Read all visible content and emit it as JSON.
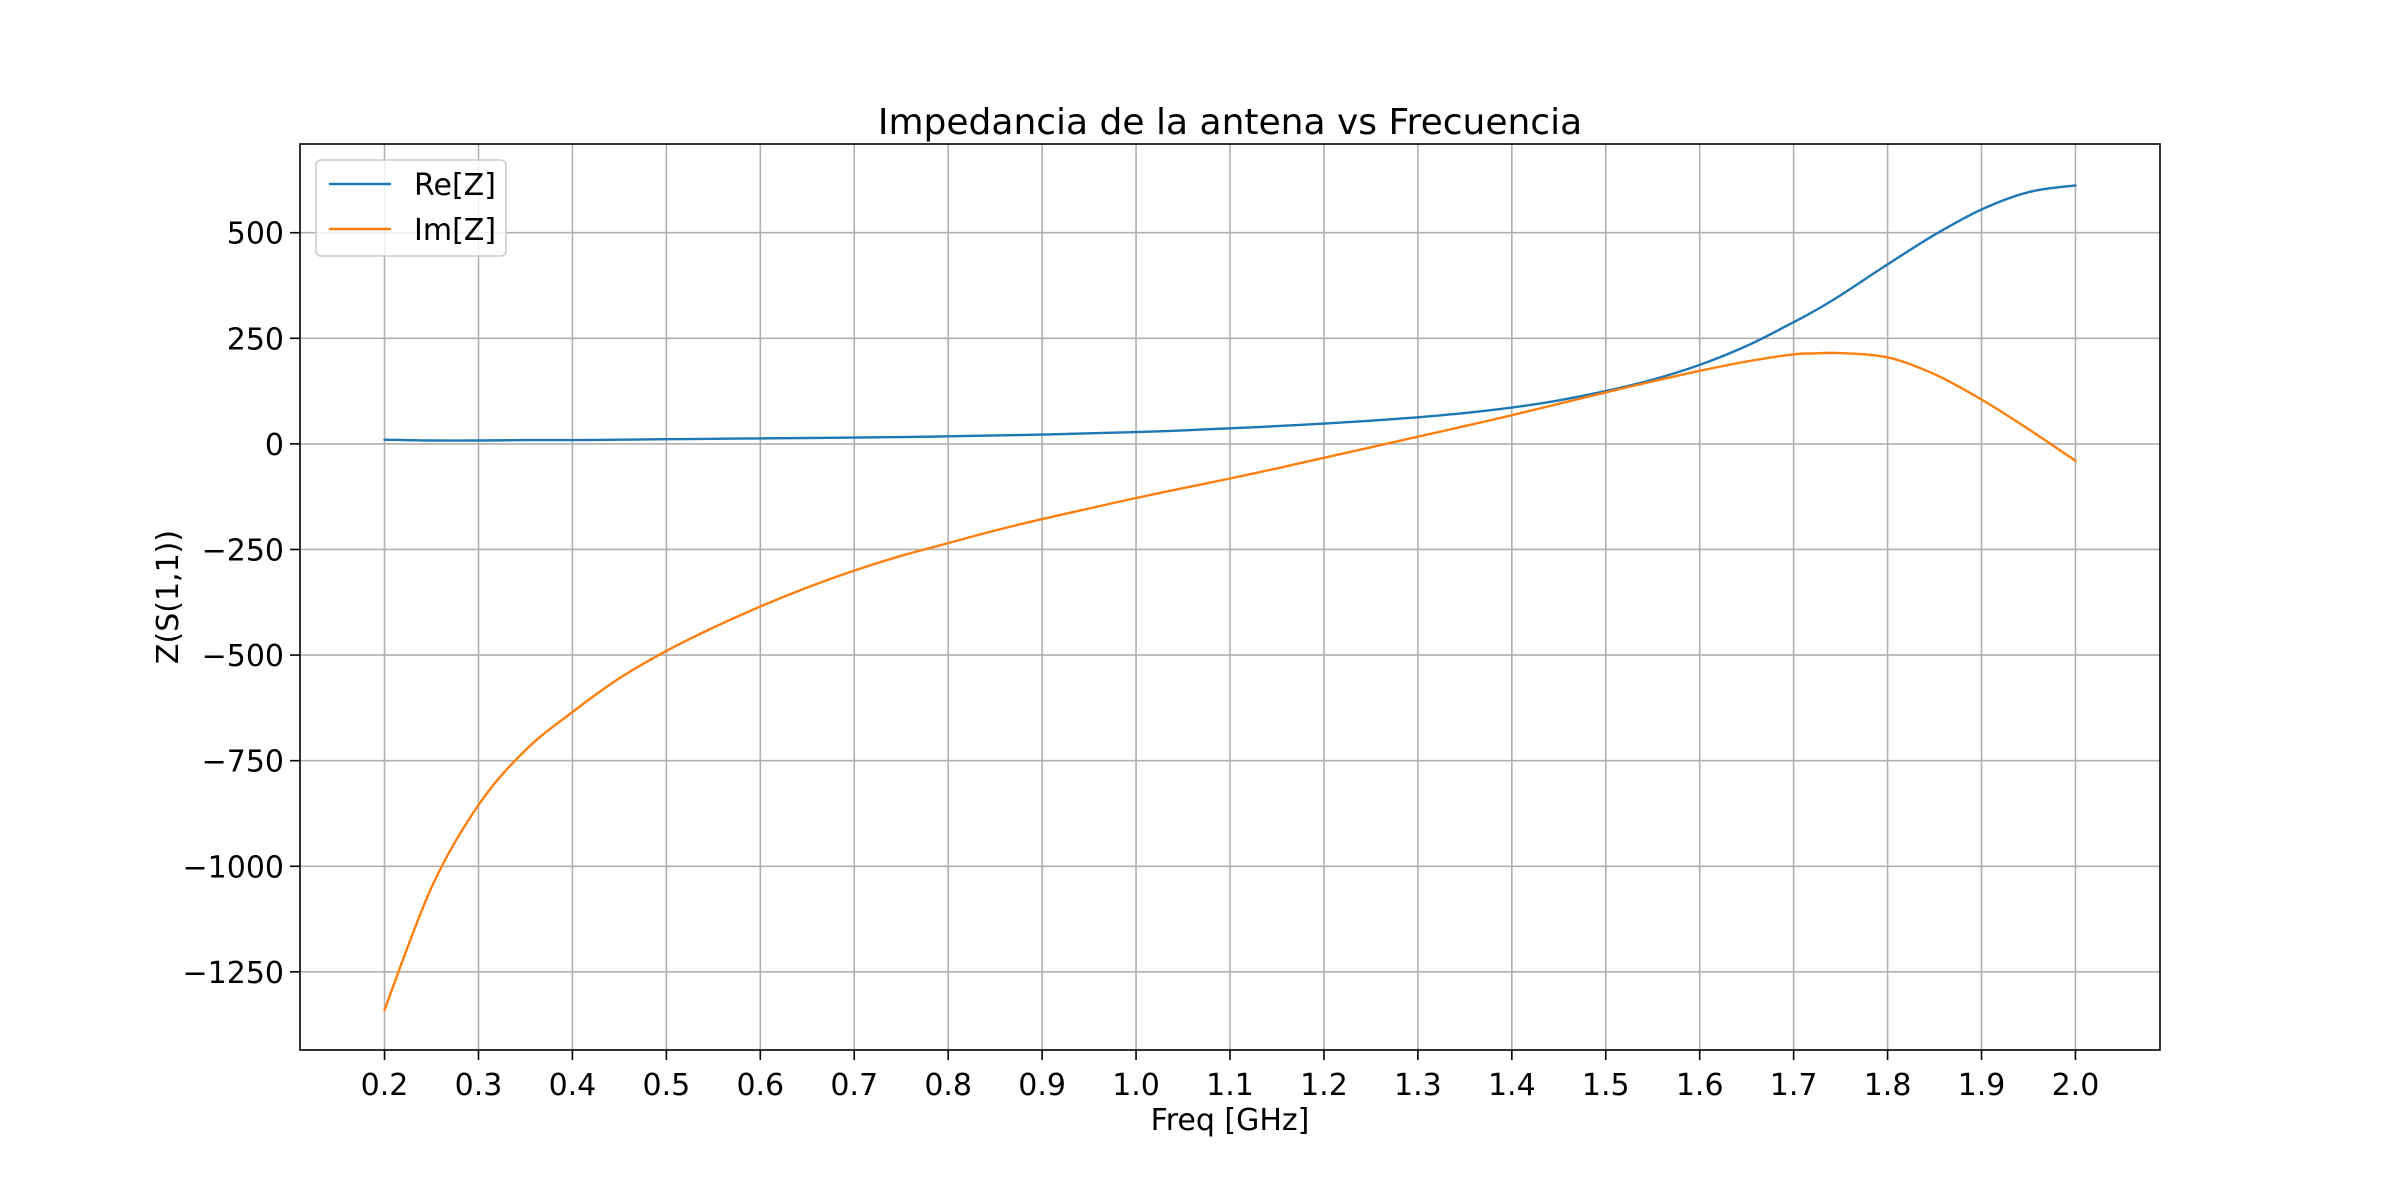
{
  "chart_data": {
    "type": "line",
    "title": "Impedancia de la antena vs Frecuencia",
    "xlabel": "Freq [GHz]",
    "ylabel": "Z(S(1,1))",
    "xlim": [
      0.11,
      2.09
    ],
    "ylim": [
      -1435,
      710
    ],
    "x_ticks": [
      0.2,
      0.3,
      0.4,
      0.5,
      0.6,
      0.7,
      0.8,
      0.9,
      1.0,
      1.1,
      1.2,
      1.3,
      1.4,
      1.5,
      1.6,
      1.7,
      1.8,
      1.9,
      2.0
    ],
    "x_tick_labels": [
      "0.2",
      "0.3",
      "0.4",
      "0.5",
      "0.6",
      "0.7",
      "0.8",
      "0.9",
      "1.0",
      "1.1",
      "1.2",
      "1.3",
      "1.4",
      "1.5",
      "1.6",
      "1.7",
      "1.8",
      "1.9",
      "2.0"
    ],
    "y_ticks": [
      500,
      250,
      0,
      -250,
      -500,
      -750,
      -1000,
      -1250
    ],
    "y_tick_labels": [
      "500",
      "250",
      "0",
      "−250",
      "−500",
      "−750",
      "−1000",
      "−1250"
    ],
    "grid": true,
    "legend_position": "top-left",
    "x": [
      0.2,
      0.25,
      0.3,
      0.35,
      0.4,
      0.45,
      0.5,
      0.55,
      0.6,
      0.65,
      0.7,
      0.75,
      0.8,
      0.85,
      0.9,
      0.95,
      1.0,
      1.05,
      1.1,
      1.15,
      1.2,
      1.25,
      1.3,
      1.35,
      1.4,
      1.45,
      1.5,
      1.55,
      1.6,
      1.65,
      1.7,
      1.72,
      1.75,
      1.8,
      1.85,
      1.9,
      1.95,
      2.0
    ],
    "series": [
      {
        "name": "Re[Z]",
        "color": "#1f77b4",
        "values": [
          10,
          8,
          8,
          9,
          9,
          10,
          11,
          12,
          13,
          14,
          15,
          16,
          18,
          20,
          22,
          25,
          28,
          32,
          37,
          42,
          48,
          55,
          63,
          73,
          86,
          103,
          125,
          152,
          187,
          232,
          288,
          312,
          352,
          425,
          495,
          555,
          596,
          612
        ]
      },
      {
        "name": "Im[Z]",
        "color": "#ff7f0e",
        "values": [
          -1340,
          -1050,
          -855,
          -725,
          -635,
          -555,
          -490,
          -435,
          -385,
          -340,
          -300,
          -265,
          -235,
          -205,
          -178,
          -153,
          -128,
          -105,
          -82,
          -58,
          -33,
          -8,
          17,
          42,
          68,
          95,
          122,
          148,
          173,
          195,
          212,
          214,
          215,
          205,
          165,
          105,
          35,
          -40
        ]
      }
    ]
  }
}
